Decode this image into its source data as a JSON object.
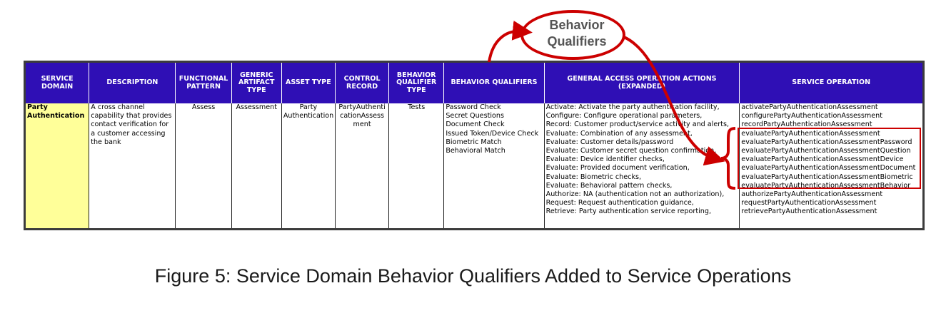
{
  "table": {
    "headers": [
      "SERVICE DOMAIN",
      "DESCRIPTION",
      "FUNCTIONAL PATTERN",
      "GENERIC ARTIFACT TYPE",
      "ASSET TYPE",
      "CONTROL RECORD",
      "BEHAVIOR QUALIFIER TYPE",
      "BEHAVIOR QUALIFIERS",
      "GENERAL ACCESS OPERATION ACTIONS (EXPANDED)",
      "SERVICE OPERATION"
    ],
    "row": {
      "service_domain": "Party Authentication",
      "description": "A cross channel capability that provides contact verification for a customer accessing the bank",
      "functional_pattern": "Assess",
      "generic_artifact_type": "Assessment",
      "asset_type": "Party Authentication",
      "control_record": "PartyAuthenticationAssessment",
      "behavior_qualifier_type": "Tests",
      "behavior_qualifiers": [
        "Password Check",
        "Secret Questions",
        "Document Check",
        "Issued Token/Device Check",
        "Biometric Match",
        "Behavioral Match"
      ],
      "general_access_actions": [
        "Activate: Activate the party authentication facility,",
        "Configure: Configure operational parameters,",
        "Record: Customer product/service activity and alerts,",
        "Evaluate: Combination of any assessment,",
        "Evaluate: Customer details/password",
        "Evaluate: Customer secret question confirmation,",
        "Evaluate: Device identifier checks,",
        "Evaluate: Provided document verification,",
        "Evaluate: Biometric checks,",
        "Evaluate: Behavioral pattern checks,",
        "Authorize: NA (authentication not an authorization),",
        "Request: Request authentication guidance,",
        "Retrieve: Party authentication service reporting,"
      ],
      "service_operations": [
        "activatePartyAuthenticationAssessment",
        "configurePartyAuthenticationAssessment",
        "recordPartyAuthenticationAssessment",
        "evaluatePartyAuthenticationAssessment",
        "evaluatePartyAuthenticationAssessmentPassword",
        "evaluatePartyAuthenticationAssessmentQuestion",
        "evaluatePartyAuthenticationAssessmentDevice",
        "evaluatePartyAuthenticationAssessmentDocument",
        "evaluatePartyAuthenticationAssessmentBiometric",
        "evaluatePartyAuthenticationAssessmentBehavior",
        "authorizePartyAuthenticationAssessment",
        "requestPartyAuthenticationAssessment",
        "retrievePartyAuthenticationAssessment"
      ]
    }
  },
  "callout": {
    "line1": "Behavior",
    "line2": "Qualifiers"
  },
  "caption": "Figure 5: Service Domain Behavior Qualifiers Added to Service Operations",
  "colors": {
    "header_bg": "#2f0fb5",
    "domain_cell_bg": "#ffff99",
    "annotation_red": "#cc0000"
  }
}
